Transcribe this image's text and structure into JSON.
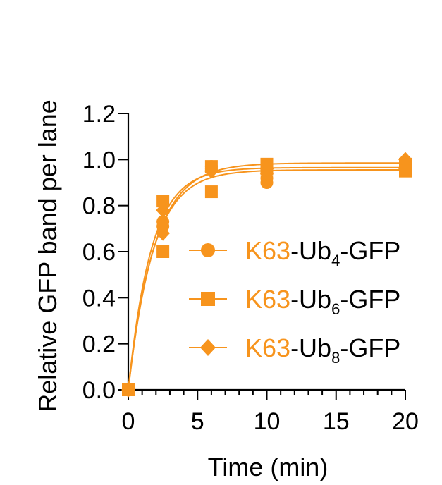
{
  "chart_data": {
    "type": "scatter",
    "xlabel": "Time (min)",
    "ylabel": "Relative GFP band per lane",
    "xlim": [
      0,
      20
    ],
    "ylim": [
      0,
      1.2
    ],
    "x_ticks": [
      "0",
      "5",
      "10",
      "15",
      "20"
    ],
    "y_ticks": [
      "0.0",
      "0.2",
      "0.4",
      "0.6",
      "0.8",
      "1.0",
      "1.2"
    ],
    "x_minor_step": 1,
    "grid": false,
    "legend_position": "right",
    "color": "#F7941D",
    "series": [
      {
        "name_prefix": "K63",
        "name_mid": "-Ub",
        "name_sub": "4",
        "name_suffix": "-GFP",
        "marker": "circle",
        "x": [
          0,
          2.5,
          2.5,
          6,
          6,
          10,
          10,
          20
        ],
        "y": [
          0.0,
          0.73,
          0.71,
          0.97,
          0.96,
          0.9,
          0.92,
          0.97
        ],
        "fit_plateau": 0.955,
        "fit_k": 0.56
      },
      {
        "name_prefix": "K63",
        "name_mid": "-Ub",
        "name_sub": "6",
        "name_suffix": "-GFP",
        "marker": "square",
        "x": [
          0,
          2.5,
          2.5,
          6,
          6,
          10,
          10,
          20,
          20
        ],
        "y": [
          0.0,
          0.82,
          0.6,
          0.97,
          0.86,
          0.96,
          0.98,
          0.98,
          0.95
        ],
        "fit_plateau": 0.985,
        "fit_k": 0.53
      },
      {
        "name_prefix": "K63",
        "name_mid": "-Ub",
        "name_sub": "8",
        "name_suffix": "-GFP",
        "marker": "diamond",
        "x": [
          0,
          2.5,
          2.5,
          6,
          10,
          10,
          20,
          20
        ],
        "y": [
          0.0,
          0.78,
          0.68,
          0.95,
          0.94,
          0.96,
          1.0,
          0.96
        ],
        "fit_plateau": 0.965,
        "fit_k": 0.6
      }
    ]
  }
}
